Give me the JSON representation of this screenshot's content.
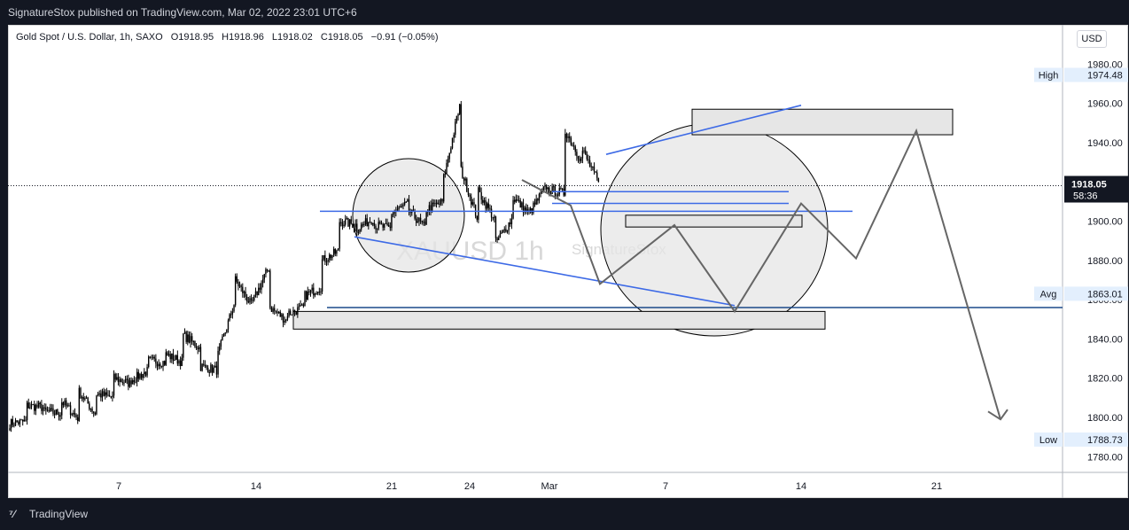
{
  "header": {
    "published_text": "SignatureStox published on TradingView.com, Mar 02, 2022 23:01 UTC+6"
  },
  "legend": {
    "symbol": "Gold Spot / U.S. Dollar, 1h, SAXO",
    "open": "O1918.95",
    "high": "H1918.96",
    "low": "L1918.02",
    "close": "C1918.05",
    "change": "−0.91 (−0.05%)"
  },
  "watermark": {
    "symbol": "XAUUSD 1h",
    "author": "SignatureStox"
  },
  "currency_button": "USD",
  "footer": {
    "logo_icon": "tradingview-logo-icon",
    "brand": "TradingView"
  },
  "colors": {
    "background": "#ffffff",
    "frame": "#131722",
    "candles": "#000000",
    "blue_line": "#3d6ae6",
    "dark_blue_line": "#1b4a8a",
    "path_gray": "#666666",
    "zone_fill": "#e6e6e6"
  },
  "chart_data": {
    "type": "candlestick",
    "symbol": "Gold Spot / U.S. Dollar",
    "timeframe": "1h",
    "ylim": [
      1772,
      2000
    ],
    "y_ticks": [
      1780,
      1800,
      1820,
      1840,
      1860,
      1880,
      1900,
      1920,
      1940,
      1960,
      1980
    ],
    "y_tick_labels": [
      "1780.00",
      "1800.00",
      "1820.00",
      "1840.00",
      "1860.00",
      "1880.00",
      "1900.00",
      "1920.00",
      "1940.00",
      "1960.00",
      "1980.00"
    ],
    "x_ticks": [
      {
        "label": "7",
        "index": 0
      },
      {
        "label": "14",
        "index": 1
      },
      {
        "label": "21",
        "index": 2
      },
      {
        "label": "24",
        "index": 3
      },
      {
        "label": "Mar",
        "index": 4
      },
      {
        "label": "7",
        "index": 5
      },
      {
        "label": "14",
        "index": 6
      },
      {
        "label": "21",
        "index": 7
      }
    ],
    "price_labels": {
      "high": {
        "label": "High",
        "value": "1974.48"
      },
      "avg": {
        "label": "Avg",
        "value": "1863.01"
      },
      "low": {
        "label": "Low",
        "value": "1788.73"
      },
      "last": {
        "value": "1918.05",
        "countdown": "58:36"
      }
    },
    "price_path": [
      [
        1797,
        1798
      ],
      [
        1806,
        1805
      ],
      [
        1803,
        1802
      ],
      [
        1808,
        1799
      ],
      [
        1813,
        1801
      ],
      [
        1812,
        1810
      ],
      [
        1820,
        1817
      ],
      [
        1819,
        1824
      ],
      [
        1829,
        1828
      ],
      [
        1832,
        1828
      ],
      [
        1842,
        1835
      ],
      [
        1826,
        1824
      ],
      [
        1832,
        1860
      ],
      [
        1870,
        1856
      ],
      [
        1859,
        1878
      ],
      [
        1856,
        1849
      ],
      [
        1853,
        1856
      ],
      [
        1862,
        1867
      ],
      [
        1880,
        1885
      ],
      [
        1900,
        1898
      ],
      [
        1896,
        1902
      ],
      [
        1898,
        1896
      ],
      [
        1904,
        1909
      ],
      [
        1905,
        1896
      ],
      [
        1906,
        1910
      ],
      [
        1922,
        1962
      ],
      [
        1926,
        1900
      ],
      [
        1915,
        1900
      ],
      [
        1889,
        1902
      ],
      [
        1912,
        1903
      ],
      [
        1905,
        1919
      ],
      [
        1916,
        1914
      ],
      [
        1946,
        1930
      ],
      [
        1936,
        1918
      ]
    ],
    "levels": {
      "support_1": 1905,
      "support_2": 1856,
      "resistance_1": 1915,
      "resistance_2": 1909
    },
    "zones": [
      {
        "name": "supply-zone",
        "from": 1944,
        "to": 1957
      },
      {
        "name": "mid-zone",
        "from": 1897,
        "to": 1903
      },
      {
        "name": "demand-zone",
        "from": 1845,
        "to": 1854
      }
    ],
    "projection_path_prices": [
      1921,
      1908,
      1868,
      1898,
      1854,
      1909,
      1881,
      1946,
      1799
    ]
  }
}
